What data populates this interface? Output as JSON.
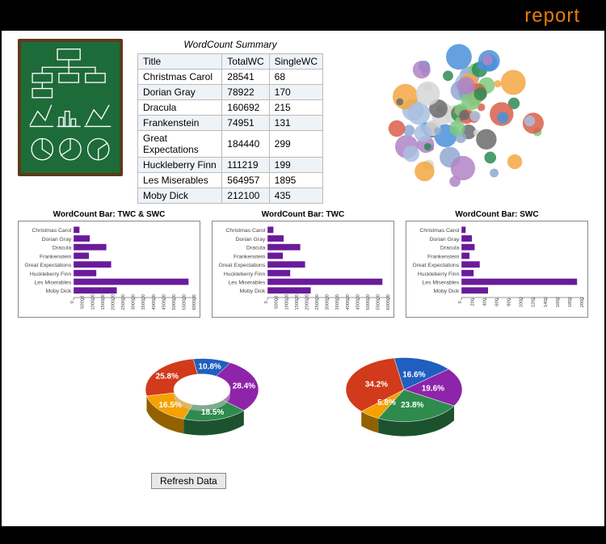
{
  "header": {
    "title": "report"
  },
  "chalkboard": {
    "bg": "#1e6b3a",
    "frame": "#5c3a1a",
    "stroke": "#ffffff"
  },
  "table": {
    "title": "WordCount Summary",
    "columns": [
      "Title",
      "TotalWC",
      "SingleWC"
    ],
    "rows": [
      [
        "Christmas Carol",
        "28541",
        "68"
      ],
      [
        "Dorian Gray",
        "78922",
        "170"
      ],
      [
        "Dracula",
        "160692",
        "215"
      ],
      [
        "Frankenstein",
        "74951",
        "131"
      ],
      [
        "Great Expectations",
        "184440",
        "299"
      ],
      [
        "Huckleberry Finn",
        "111219",
        "199"
      ],
      [
        "Les Miserables",
        "564957",
        "1895"
      ],
      [
        "Moby Dick",
        "212100",
        "435"
      ]
    ],
    "header_bg": "#eef3f8",
    "alt_bg": "#eef3f8",
    "border": "#bbbbbb"
  },
  "bubble_chart": {
    "type": "circle-pack",
    "palette": [
      "#f5a742",
      "#91a8d0",
      "#d6d6d6",
      "#7fc97f",
      "#4a90d9",
      "#d95f4a",
      "#b084c7",
      "#6b6b6b",
      "#2e8b57",
      "#a8c0e0"
    ],
    "bg": "#ffffff",
    "seed": 42,
    "count": 80
  },
  "bar_categories": [
    "Christmas Carol",
    "Dorian Gray",
    "Dracula",
    "Frankenstein",
    "Great Expectations",
    "Huckleberry Finn",
    "Les Miserables",
    "Moby Dick"
  ],
  "bar_values_twc": [
    28541,
    78922,
    160692,
    74951,
    184440,
    111219,
    564957,
    212100
  ],
  "bar_values_swc": [
    68,
    170,
    215,
    131,
    299,
    199,
    1895,
    435
  ],
  "bar_charts": [
    {
      "title": "WordCount Bar: TWC & SWC",
      "series": "twc",
      "xmax": 600000,
      "xstep": 50000
    },
    {
      "title": "WordCount Bar: TWC",
      "series": "twc",
      "xmax": 600000,
      "xstep": 50000
    },
    {
      "title": "WordCount Bar: SWC",
      "series": "swc",
      "xmax": 2000,
      "xstep": 200
    }
  ],
  "bar_style": {
    "color": "#6a1b9a",
    "h": 8,
    "gap": 3,
    "label_fontsize": 7,
    "tick_fontsize": 6
  },
  "pies": {
    "colors": [
      "#8e24aa",
      "#2e8b4d",
      "#f5a100",
      "#d13a1a",
      "#1f5fbf"
    ],
    "donut": {
      "type": "donut",
      "slices": [
        28.4,
        18.5,
        16.5,
        25.8,
        10.8
      ],
      "labels": [
        "28.4%",
        "18.5%",
        "16.5%",
        "25.8%",
        "10.8%"
      ],
      "inner_r": 35,
      "outer_r": 70,
      "depth": 18,
      "start_angle": -60
    },
    "pie": {
      "type": "pie",
      "slices": [
        19.6,
        23.8,
        5.8,
        34.2,
        16.6
      ],
      "labels": [
        "19.6%",
        "23.8%",
        "5.8%",
        "34.2%",
        "16.6%"
      ],
      "inner_r": 0,
      "outer_r": 72,
      "depth": 18,
      "start_angle": -40
    }
  },
  "refresh_label": "Refresh Data"
}
